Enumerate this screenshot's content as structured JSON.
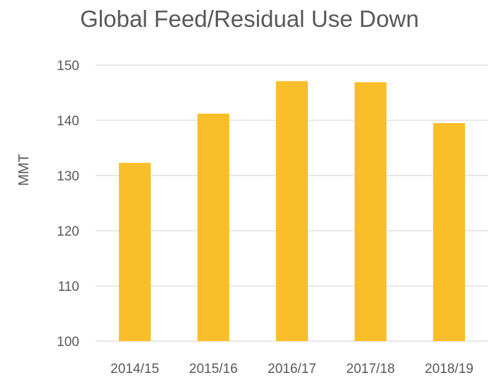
{
  "chart_data": {
    "type": "bar",
    "title": "Global Feed/Residual Use Down",
    "xlabel": "",
    "ylabel": "MMT",
    "categories": [
      "2014/15",
      "2015/16",
      "2016/17",
      "2017/18",
      "2018/19"
    ],
    "values": [
      132.3,
      141.2,
      147.1,
      146.9,
      139.5
    ],
    "ylim": [
      100,
      150
    ],
    "yticks": [
      100,
      110,
      120,
      130,
      140,
      150
    ],
    "grid": true,
    "legend": "none",
    "bar_color": "#FBBE2B",
    "grid_color": "#D9D9D9"
  }
}
